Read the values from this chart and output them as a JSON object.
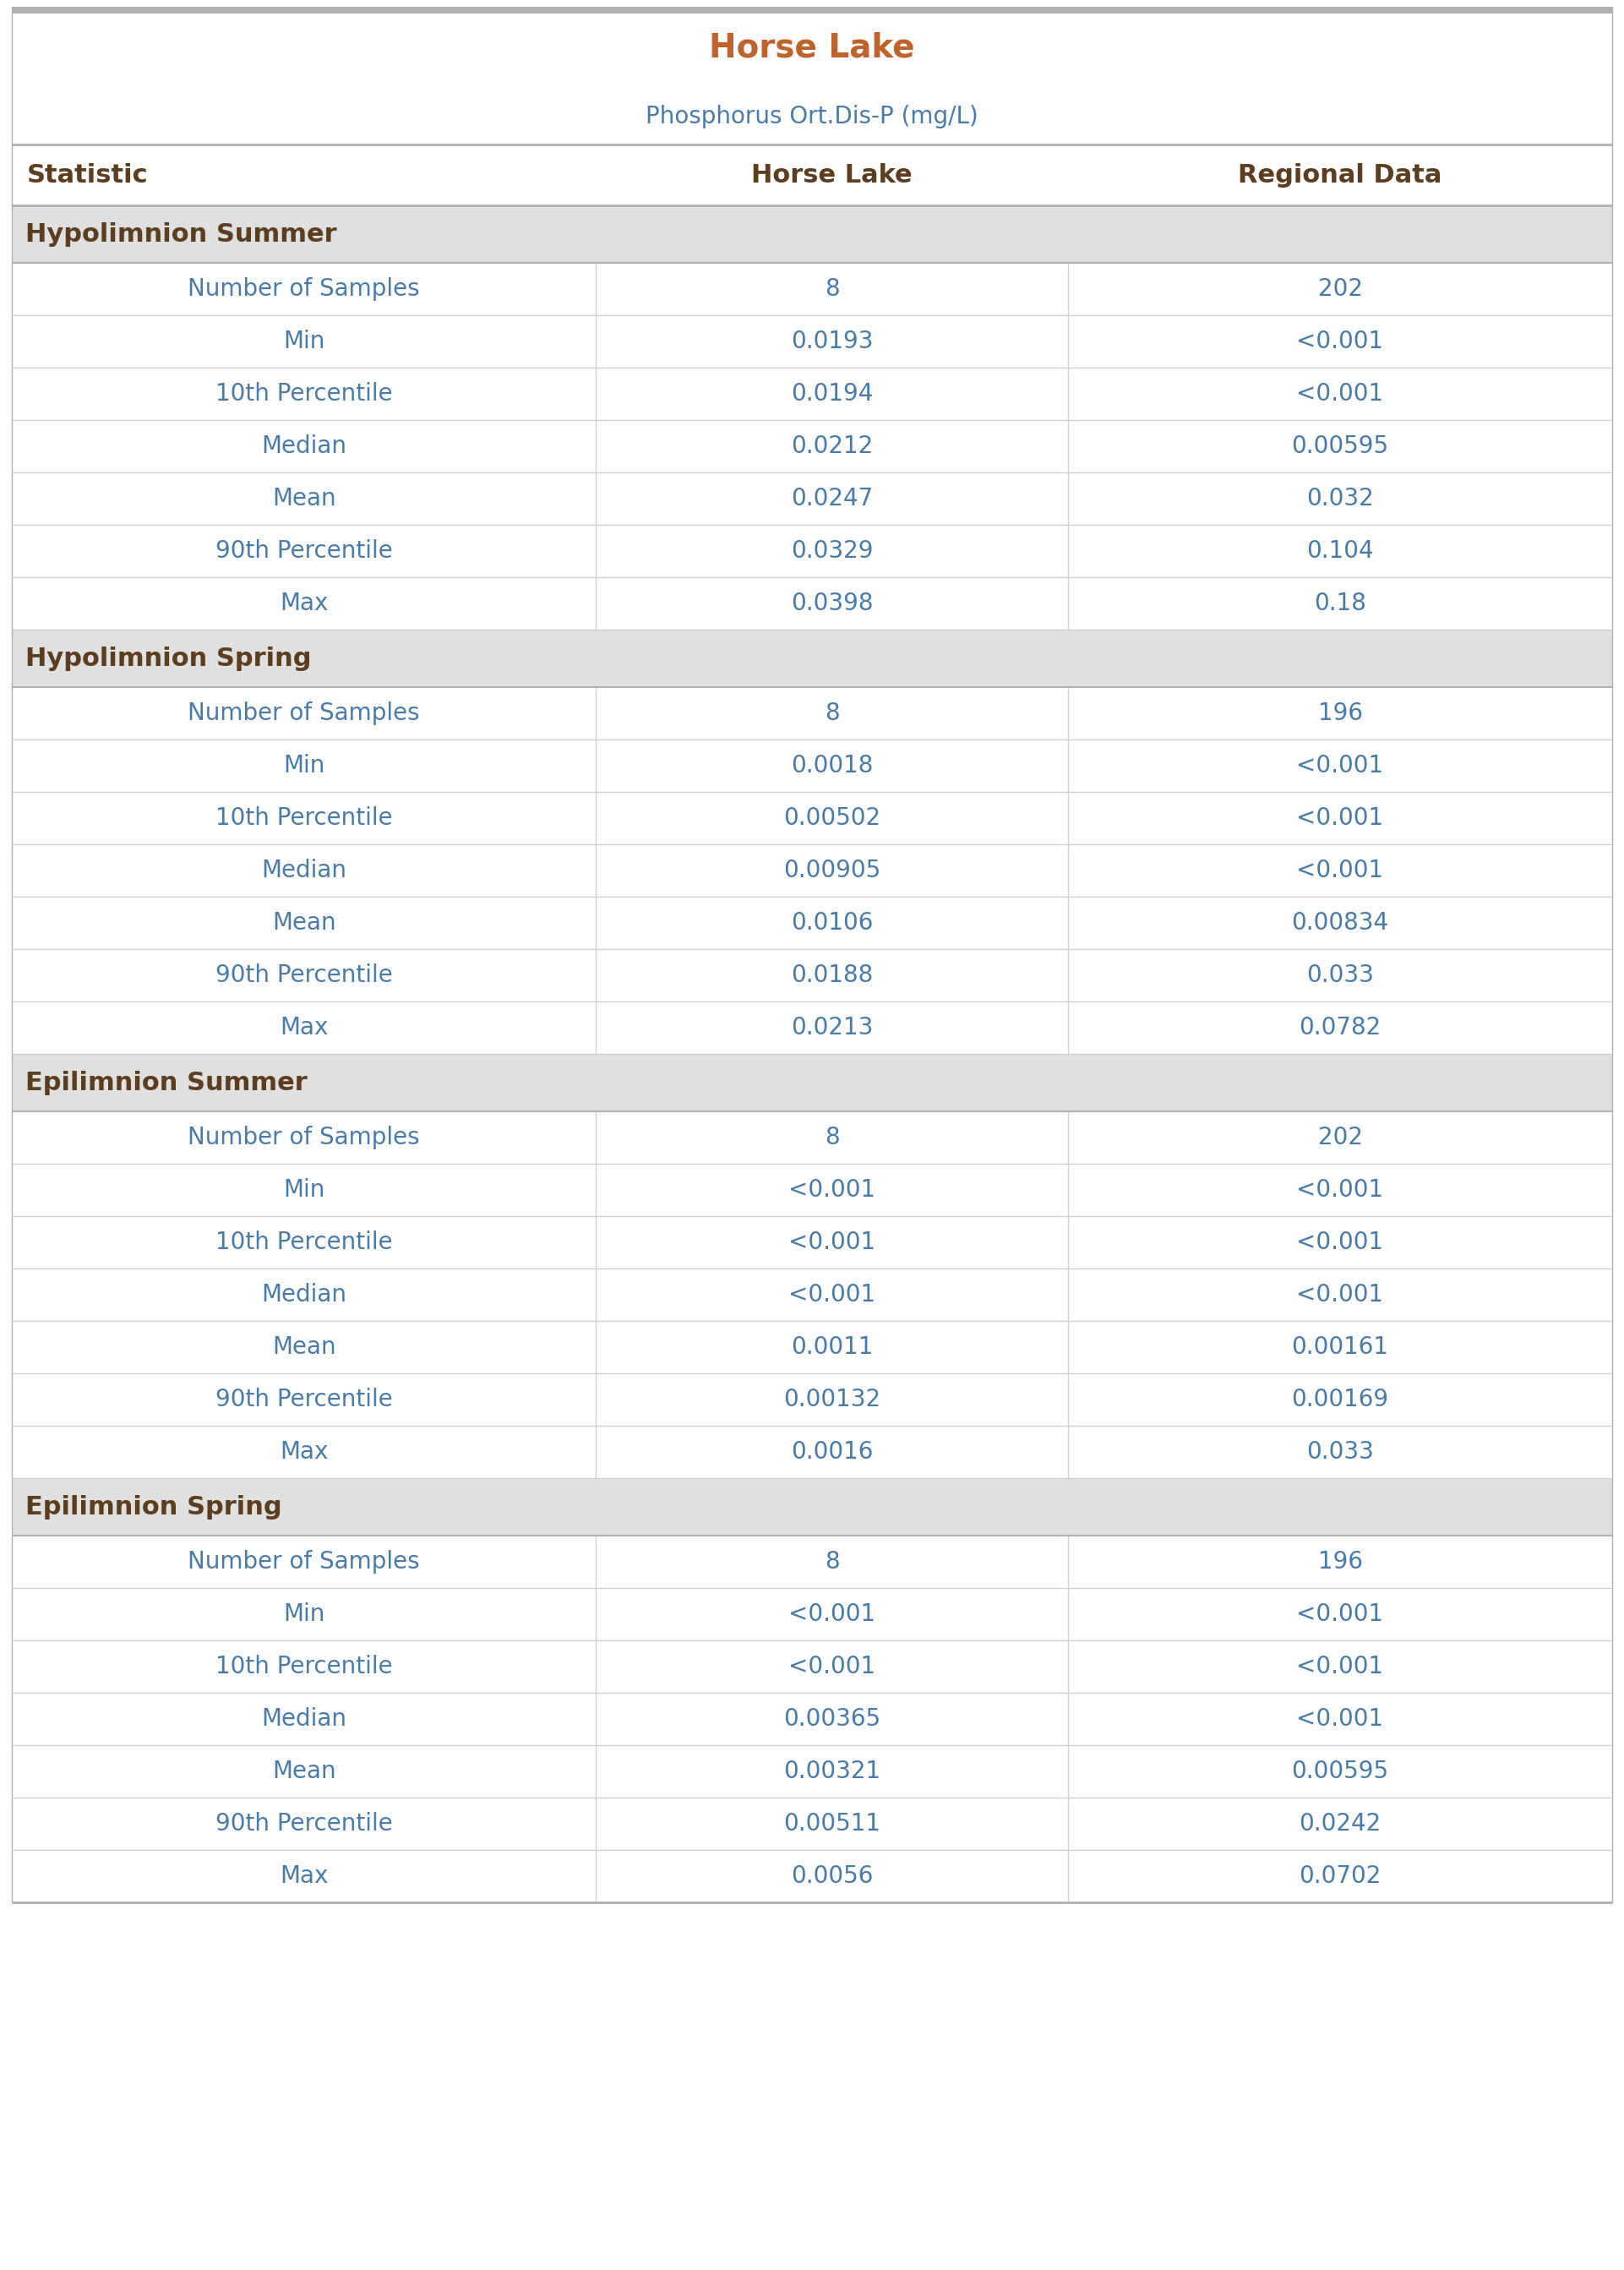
{
  "title": "Horse Lake",
  "subtitle": "Phosphorus Ort.Dis-P (mg/L)",
  "col_headers": [
    "Statistic",
    "Horse Lake",
    "Regional Data"
  ],
  "sections": [
    {
      "name": "Hypolimnion Summer",
      "rows": [
        [
          "Number of Samples",
          "8",
          "202"
        ],
        [
          "Min",
          "0.0193",
          "<0.001"
        ],
        [
          "10th Percentile",
          "0.0194",
          "<0.001"
        ],
        [
          "Median",
          "0.0212",
          "0.00595"
        ],
        [
          "Mean",
          "0.0247",
          "0.032"
        ],
        [
          "90th Percentile",
          "0.0329",
          "0.104"
        ],
        [
          "Max",
          "0.0398",
          "0.18"
        ]
      ]
    },
    {
      "name": "Hypolimnion Spring",
      "rows": [
        [
          "Number of Samples",
          "8",
          "196"
        ],
        [
          "Min",
          "0.0018",
          "<0.001"
        ],
        [
          "10th Percentile",
          "0.00502",
          "<0.001"
        ],
        [
          "Median",
          "0.00905",
          "<0.001"
        ],
        [
          "Mean",
          "0.0106",
          "0.00834"
        ],
        [
          "90th Percentile",
          "0.0188",
          "0.033"
        ],
        [
          "Max",
          "0.0213",
          "0.0782"
        ]
      ]
    },
    {
      "name": "Epilimnion Summer",
      "rows": [
        [
          "Number of Samples",
          "8",
          "202"
        ],
        [
          "Min",
          "<0.001",
          "<0.001"
        ],
        [
          "10th Percentile",
          "<0.001",
          "<0.001"
        ],
        [
          "Median",
          "<0.001",
          "<0.001"
        ],
        [
          "Mean",
          "0.0011",
          "0.00161"
        ],
        [
          "90th Percentile",
          "0.00132",
          "0.00169"
        ],
        [
          "Max",
          "0.0016",
          "0.033"
        ]
      ]
    },
    {
      "name": "Epilimnion Spring",
      "rows": [
        [
          "Number of Samples",
          "8",
          "196"
        ],
        [
          "Min",
          "<0.001",
          "<0.001"
        ],
        [
          "10th Percentile",
          "<0.001",
          "<0.001"
        ],
        [
          "Median",
          "0.00365",
          "<0.001"
        ],
        [
          "Mean",
          "0.00321",
          "0.00595"
        ],
        [
          "90th Percentile",
          "0.00511",
          "0.0242"
        ],
        [
          "Max",
          "0.0056",
          "0.0702"
        ]
      ]
    }
  ],
  "title_color": "#C0622C",
  "subtitle_color": "#4A7BA7",
  "col_header_text_color": "#5C3D1E",
  "section_header_bg": "#E0E0E0",
  "section_header_text_color": "#5C3D1E",
  "data_stat_color": "#4A7BA7",
  "data_value_color": "#4A7BA7",
  "row_bg_white": "#FFFFFF",
  "border_color_light": "#D0D0D0",
  "border_color_dark": "#B0B0B0",
  "top_stripe_color": "#B0B0B0",
  "title_fontsize": 28,
  "subtitle_fontsize": 20,
  "col_header_fontsize": 22,
  "section_fontsize": 22,
  "data_fontsize": 20,
  "col_split1": 0.365,
  "col_split2": 0.66
}
